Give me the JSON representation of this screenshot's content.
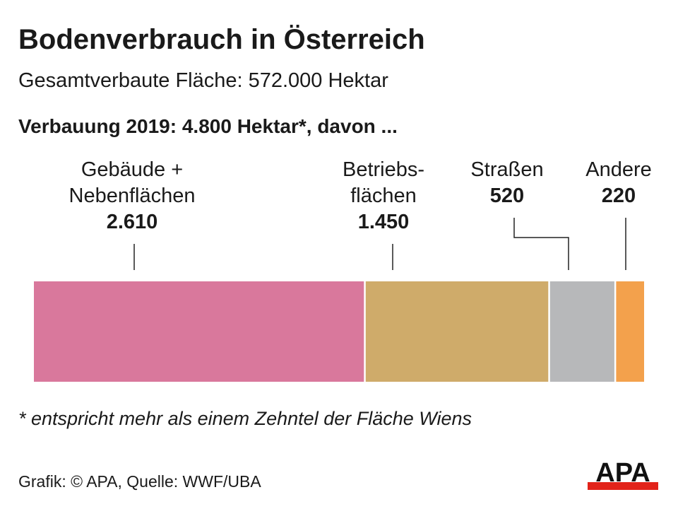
{
  "title": "Bodenverbrauch in Österreich",
  "subtitle": "Gesamtverbaute Fläche: 572.000 Hektar",
  "headline": "Verbauung 2019: 4.800 Hektar*, davon ...",
  "footnote": "* entspricht mehr als einem Zehntel der Fläche Wiens",
  "source": "Grafik: © APA, Quelle: WWF/UBA",
  "logo": "APA",
  "chart_data": {
    "type": "bar",
    "orientation": "horizontal-stacked",
    "total": 4800,
    "unit": "Hektar",
    "categories": [
      "Gebäude + Nebenflächen",
      "Betriebs-flächen",
      "Straßen",
      "Andere"
    ],
    "label_lines": [
      [
        "Gebäude +",
        "Nebenflächen"
      ],
      [
        "Betriebs-",
        "flächen"
      ],
      [
        "Straßen"
      ],
      [
        "Andere"
      ]
    ],
    "value_labels": [
      "2.610",
      "1.450",
      "520",
      "220"
    ],
    "values": [
      2610,
      1450,
      520,
      220
    ],
    "colors": [
      "#d9789c",
      "#cfab6a",
      "#b7b8ba",
      "#f3a14c"
    ]
  }
}
